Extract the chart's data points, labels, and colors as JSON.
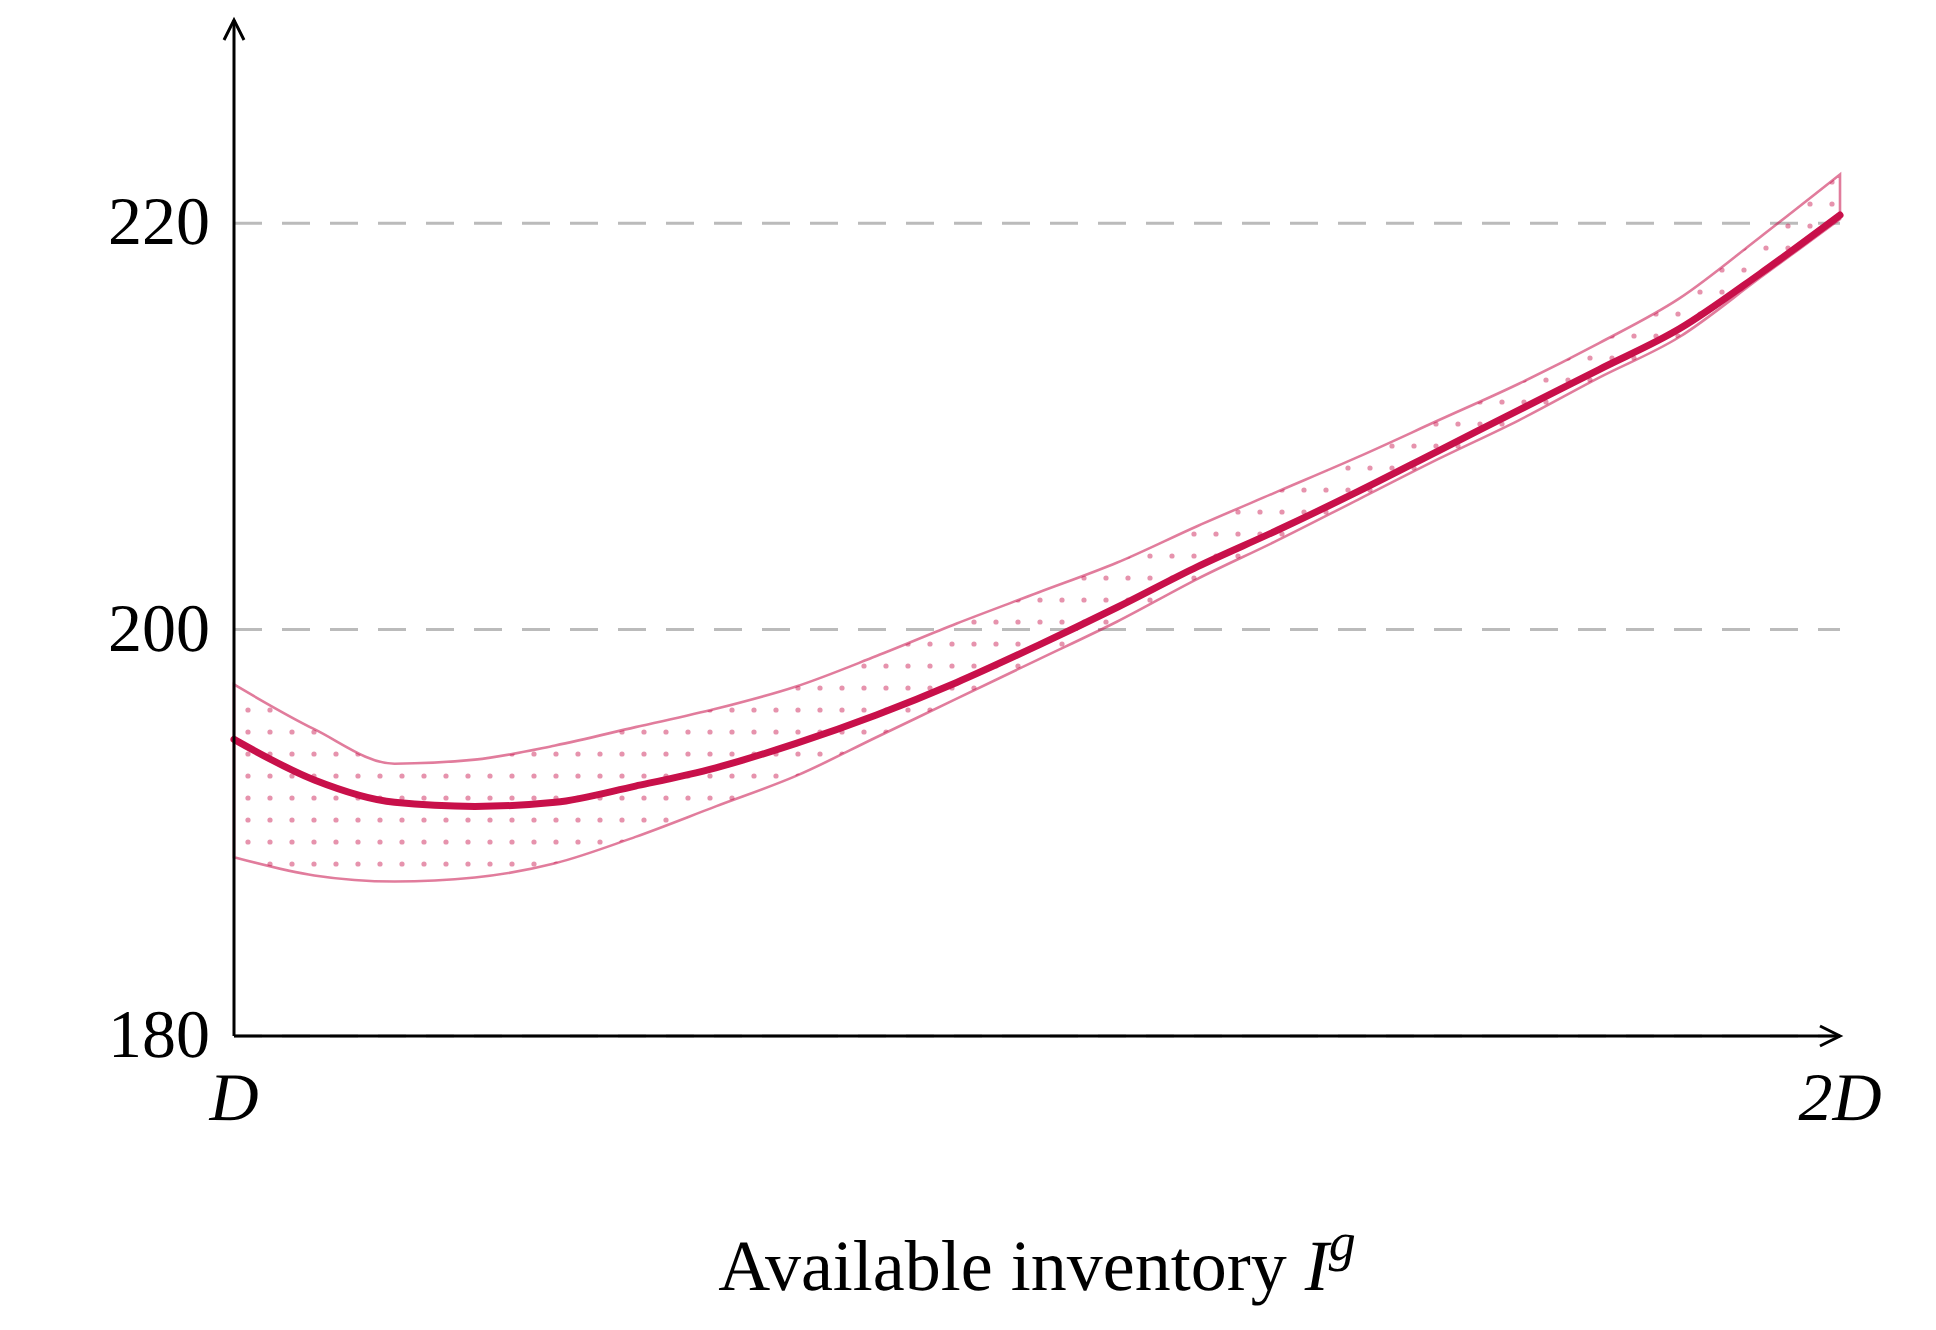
{
  "chart_data": {
    "type": "line",
    "xlabel": "Available inventory I$^{g}$",
    "categories": [
      "D",
      null,
      null,
      null,
      null,
      null,
      null,
      null,
      null,
      null,
      null,
      null,
      null,
      null,
      null,
      null,
      null,
      null,
      null,
      null,
      "2D"
    ],
    "series": [
      {
        "color": "#c8104a",
        "values": [
          194.6,
          192.6,
          191.5,
          191.3,
          191.5,
          192.3,
          193.2,
          194.4,
          195.8,
          197.4,
          199.2,
          201.1,
          203.1,
          204.9,
          206.8,
          208.8,
          210.8,
          212.8,
          214.8,
          217.5,
          220.4
        ],
        "lower": [
          188.8,
          187.9,
          187.6,
          187.8,
          188.5,
          189.8,
          191.3,
          192.8,
          194.7,
          196.6,
          198.5,
          200.4,
          202.5,
          204.4,
          206.4,
          208.4,
          210.3,
          212.4,
          214.4,
          217.3,
          220.2
        ],
        "upper": [
          197.3,
          195.1,
          193.4,
          193.6,
          194.3,
          195.2,
          196.1,
          197.2,
          198.7,
          200.3,
          201.8,
          203.3,
          205.1,
          206.8,
          208.5,
          210.3,
          212.1,
          214.1,
          216.3,
          219.3,
          222.4
        ]
      }
    ],
    "ylim": [
      180,
      230
    ],
    "yticks": [
      180,
      200,
      220
    ],
    "grid": "y",
    "line_style": "solid",
    "marker": "none"
  }
}
